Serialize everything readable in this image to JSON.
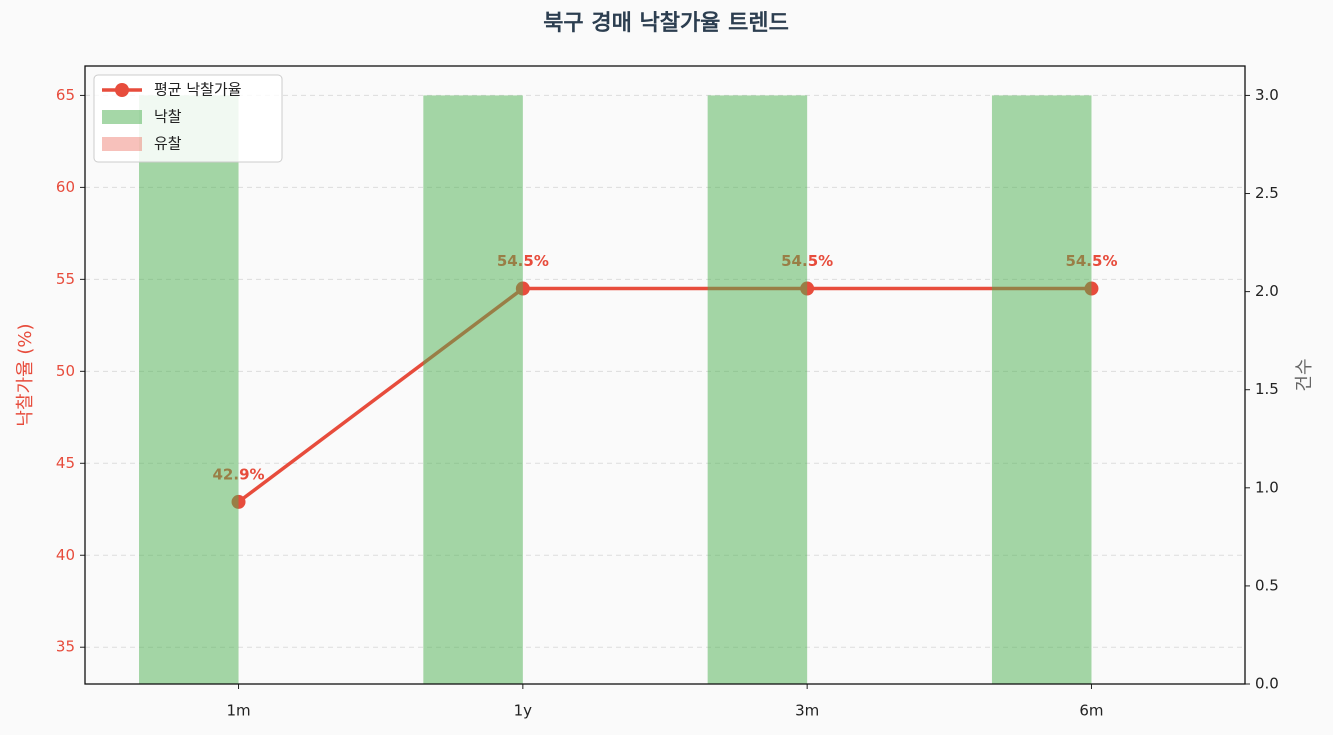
{
  "chart_data": {
    "type": "combo",
    "title": "북구 경매 낙찰가율 트렌드",
    "ylabel": "낙찰가율 (%)",
    "y2label": "건수",
    "categories": [
      "1m",
      "1y",
      "3m",
      "6m"
    ],
    "ylim": [
      33,
      66.6
    ],
    "yticks": [
      35,
      40,
      45,
      50,
      55,
      60,
      65
    ],
    "y2lim": [
      0,
      3.15
    ],
    "y2ticks": [
      {
        "value": 0,
        "label": "0.0"
      },
      {
        "value": 0.5,
        "label": "0.5"
      },
      {
        "value": 1,
        "label": "1.0"
      },
      {
        "value": 1.5,
        "label": "1.5"
      },
      {
        "value": 2,
        "label": "2.0"
      },
      {
        "value": 2.5,
        "label": "2.5"
      },
      {
        "value": 3,
        "label": "3.0"
      }
    ],
    "grid": true,
    "legend": "upper left",
    "series": [
      {
        "name": "평균 낙찰가율",
        "type": "line",
        "color": "#e74c3c",
        "values": [
          42.9,
          54.5,
          54.5,
          54.5
        ],
        "value_labels": [
          "42.9%",
          "54.5%",
          "54.5%",
          "54.5%"
        ]
      },
      {
        "name": "낙찰",
        "type": "bar",
        "axis": "y2",
        "color": "#4caf50",
        "values": [
          3,
          3,
          3,
          3
        ]
      },
      {
        "name": "유찰",
        "type": "bar",
        "axis": "y2",
        "color": "#e74c3c",
        "values": [
          0,
          0,
          0,
          0
        ]
      }
    ]
  }
}
